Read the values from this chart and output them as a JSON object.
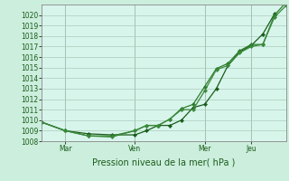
{
  "background_color": "#cceedd",
  "plot_bg_color": "#d8f5ec",
  "grid_color": "#aaccbb",
  "line_color1": "#1a5c1a",
  "line_color2": "#2d7a2d",
  "line_color3": "#3a8a3a",
  "title": "Pression niveau de la mer( hPa )",
  "ylim": [
    1008,
    1021
  ],
  "yticks": [
    1008,
    1009,
    1010,
    1011,
    1012,
    1013,
    1014,
    1015,
    1016,
    1017,
    1018,
    1019,
    1020
  ],
  "xtick_labels": [
    "Mar",
    "Ven",
    "Mer",
    "Jeu"
  ],
  "vline_positions": [
    1,
    4,
    7,
    9
  ],
  "series1_x": [
    0,
    1,
    2,
    3,
    4,
    4.5,
    5,
    5.5,
    6,
    6.5,
    7,
    7.5,
    8,
    8.5,
    9,
    9.5,
    10
  ],
  "series1_y": [
    1009.8,
    1009.0,
    1008.7,
    1008.6,
    1008.6,
    1009.0,
    1009.5,
    1009.5,
    1010.0,
    1011.2,
    1011.5,
    1013.0,
    1015.2,
    1016.5,
    1017.1,
    1018.2,
    1020.1
  ],
  "series2_x": [
    0,
    1,
    2,
    3,
    4,
    4.5,
    5,
    5.5,
    6,
    6.5,
    7,
    7.5,
    8,
    8.5,
    9,
    9.5,
    10,
    10.5
  ],
  "series2_y": [
    1009.8,
    1009.0,
    1008.5,
    1008.5,
    1009.0,
    1009.5,
    1009.5,
    1010.1,
    1011.1,
    1011.5,
    1013.2,
    1014.9,
    1015.4,
    1016.6,
    1017.2,
    1017.2,
    1020.0,
    1021.2
  ],
  "series3_x": [
    0,
    1,
    2,
    3,
    4,
    4.5,
    5,
    5.5,
    6,
    6.5,
    7,
    7.5,
    8,
    8.5,
    9,
    9.5,
    10,
    10.5
  ],
  "series3_y": [
    1009.8,
    1009.0,
    1008.5,
    1008.4,
    1009.0,
    1009.5,
    1009.5,
    1010.1,
    1011.0,
    1011.0,
    1012.8,
    1014.8,
    1015.2,
    1016.4,
    1017.0,
    1017.2,
    1019.8,
    1020.9
  ],
  "xmin": 0,
  "xmax": 10.5,
  "tick_fontsize": 5.5,
  "label_fontsize": 7,
  "vline_color": "#999999",
  "spine_color": "#888888"
}
